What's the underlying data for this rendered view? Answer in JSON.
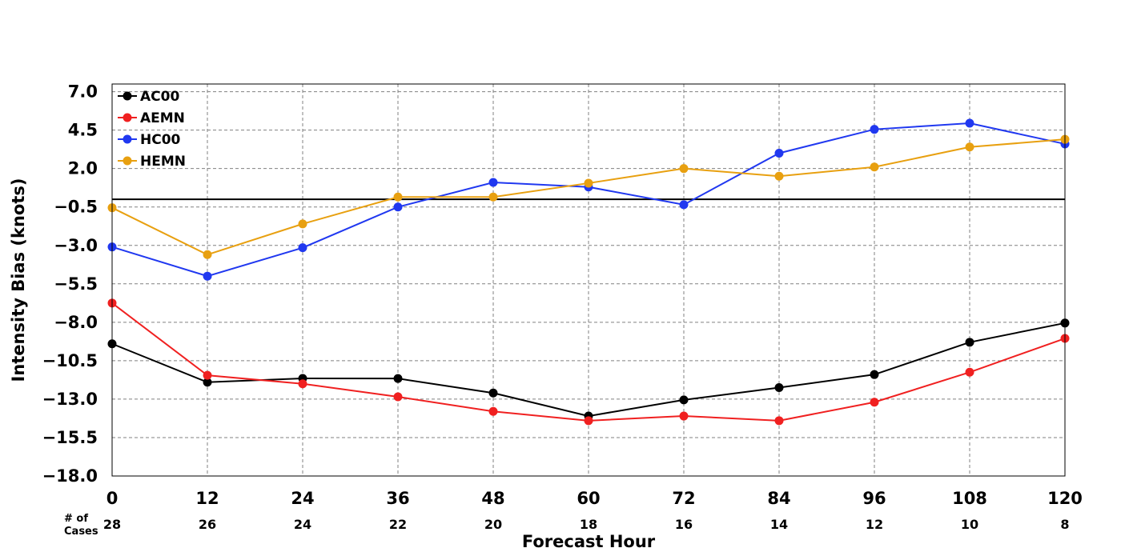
{
  "chart_data": {
    "type": "line",
    "xlabel": "Forecast Hour",
    "ylabel": "Intensity Bias (knots)",
    "x": [
      0,
      12,
      24,
      36,
      48,
      60,
      72,
      84,
      96,
      108,
      120
    ],
    "xlim": [
      0,
      120
    ],
    "ylim": [
      -18.0,
      7.0
    ],
    "yticks": [
      "7.0",
      "4.5",
      "2.0",
      "−0.5",
      "−3.0",
      "−5.5",
      "−8.0",
      "−10.5",
      "−13.0",
      "−15.5",
      "−18.0"
    ],
    "ytick_values": [
      7.0,
      4.5,
      2.0,
      -0.5,
      -3.0,
      -5.5,
      -8.0,
      -10.5,
      -13.0,
      -15.5,
      -18.0
    ],
    "grid": true,
    "zero_line": true,
    "legend_position": "top-left",
    "cases_label": [
      "# of",
      "Cases"
    ],
    "cases": [
      "28",
      "26",
      "24",
      "22",
      "20",
      "18",
      "16",
      "14",
      "12",
      "10",
      "8"
    ],
    "series": [
      {
        "name": "AC00",
        "color": "#000000",
        "values": [
          -9.4,
          -11.9,
          -11.65,
          -11.66,
          -12.6,
          -14.1,
          -13.05,
          -12.25,
          -11.4,
          -9.3,
          -8.05
        ]
      },
      {
        "name": "AEMN",
        "color": "#f02020",
        "values": [
          -6.75,
          -11.45,
          -12.0,
          -12.85,
          -13.8,
          -14.4,
          -14.1,
          -14.4,
          -13.2,
          -11.25,
          -9.05
        ]
      },
      {
        "name": "HC00",
        "color": "#2038f0",
        "values": [
          -3.1,
          -5.0,
          -3.15,
          -0.5,
          1.1,
          0.8,
          -0.35,
          3.0,
          4.55,
          4.95,
          3.6
        ]
      },
      {
        "name": "HEMN",
        "color": "#e8a010",
        "values": [
          -0.55,
          -3.6,
          -1.6,
          0.15,
          0.15,
          1.05,
          2.0,
          1.5,
          2.1,
          3.4,
          3.9
        ]
      }
    ]
  }
}
